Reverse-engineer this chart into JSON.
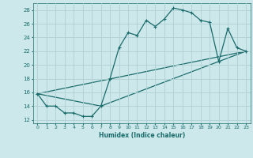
{
  "title": "",
  "xlabel": "Humidex (Indice chaleur)",
  "ylabel": "",
  "bg_color": "#cce8ea",
  "grid_color": "#b0d0d4",
  "line_color": "#1a6b6b",
  "xlim": [
    -0.5,
    23.5
  ],
  "ylim": [
    11.5,
    29.0
  ],
  "xticks": [
    0,
    1,
    2,
    3,
    4,
    5,
    6,
    7,
    8,
    9,
    10,
    11,
    12,
    13,
    14,
    15,
    16,
    17,
    18,
    19,
    20,
    21,
    22,
    23
  ],
  "yticks": [
    12,
    14,
    16,
    18,
    20,
    22,
    24,
    26,
    28
  ],
  "line1_x": [
    0,
    1,
    2,
    3,
    4,
    5,
    6,
    7,
    8,
    9,
    10,
    11,
    12,
    13,
    14,
    15,
    16,
    17,
    18,
    19,
    20,
    21,
    22,
    23
  ],
  "line1_y": [
    15.8,
    14.0,
    14.0,
    13.0,
    13.0,
    12.5,
    12.5,
    14.0,
    18.0,
    22.5,
    24.7,
    24.3,
    26.5,
    25.6,
    26.7,
    28.3,
    28.0,
    27.6,
    26.5,
    26.2,
    20.5,
    25.3,
    22.5,
    22.0
  ],
  "line2_x": [
    0,
    23
  ],
  "line2_y": [
    15.8,
    22.0
  ],
  "line3_x": [
    0,
    7,
    23
  ],
  "line3_y": [
    15.8,
    14.0,
    22.0
  ]
}
